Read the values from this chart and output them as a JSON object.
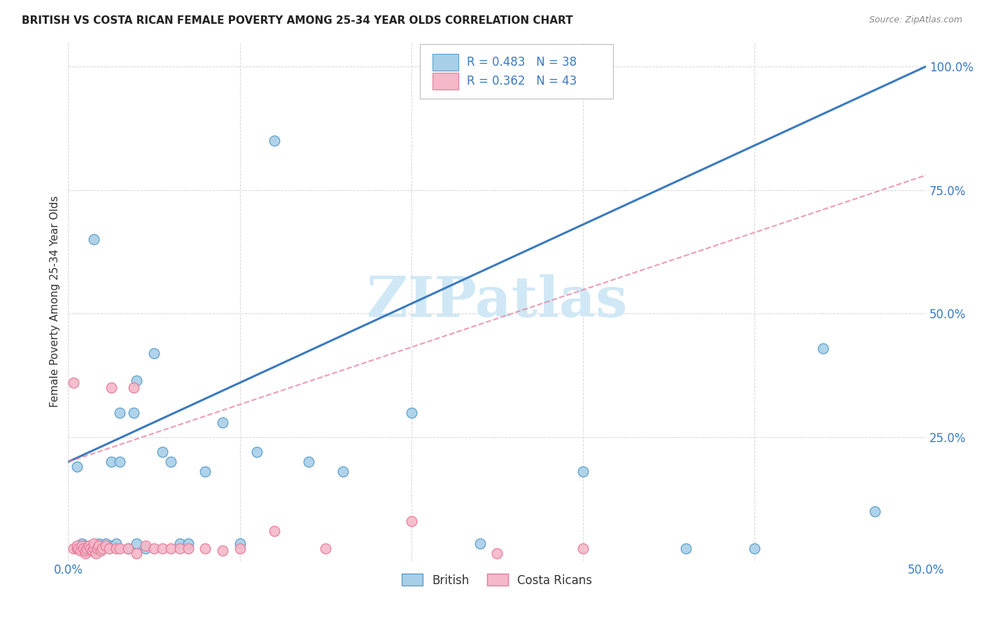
{
  "title": "BRITISH VS COSTA RICAN FEMALE POVERTY AMONG 25-34 YEAR OLDS CORRELATION CHART",
  "source": "Source: ZipAtlas.com",
  "ylabel": "Female Poverty Among 25-34 Year Olds",
  "xlim": [
    0.0,
    0.5
  ],
  "ylim": [
    0.0,
    1.05
  ],
  "xticks": [
    0.0,
    0.1,
    0.2,
    0.3,
    0.4,
    0.5
  ],
  "yticks": [
    0.25,
    0.5,
    0.75,
    1.0
  ],
  "ytick_labels": [
    "25.0%",
    "50.0%",
    "75.0%",
    "100.0%"
  ],
  "xtick_labels": [
    "0.0%",
    "",
    "",
    "",
    "",
    "50.0%"
  ],
  "british_R": "0.483",
  "british_N": "38",
  "costarican_R": "0.362",
  "costarican_N": "43",
  "british_color": "#a8cfe8",
  "british_edge": "#5a9ec9",
  "costarican_color": "#f5b8c8",
  "costarican_edge": "#e87a9a",
  "british_line_color": "#3a7abf",
  "costarican_line_color": "#e87a9a",
  "watermark": "ZIPatlas",
  "watermark_color": "#d0e8f5",
  "legend_text_color": "#3a7abf",
  "british_scatter_x": [
    0.005,
    0.008,
    0.01,
    0.012,
    0.015,
    0.015,
    0.018,
    0.02,
    0.022,
    0.025,
    0.025,
    0.028,
    0.03,
    0.03,
    0.035,
    0.038,
    0.04,
    0.04,
    0.045,
    0.05,
    0.055,
    0.06,
    0.065,
    0.07,
    0.08,
    0.09,
    0.1,
    0.11,
    0.12,
    0.14,
    0.16,
    0.2,
    0.24,
    0.3,
    0.36,
    0.4,
    0.44,
    0.47
  ],
  "british_scatter_y": [
    0.19,
    0.035,
    0.03,
    0.02,
    0.025,
    0.65,
    0.035,
    0.025,
    0.035,
    0.2,
    0.03,
    0.035,
    0.2,
    0.3,
    0.025,
    0.3,
    0.035,
    0.365,
    0.025,
    0.42,
    0.22,
    0.2,
    0.035,
    0.035,
    0.18,
    0.28,
    0.035,
    0.22,
    0.85,
    0.2,
    0.18,
    0.3,
    0.035,
    0.18,
    0.025,
    0.025,
    0.43,
    0.1
  ],
  "costarican_scatter_x": [
    0.003,
    0.003,
    0.005,
    0.005,
    0.006,
    0.007,
    0.008,
    0.009,
    0.01,
    0.01,
    0.011,
    0.012,
    0.013,
    0.014,
    0.015,
    0.015,
    0.016,
    0.017,
    0.018,
    0.019,
    0.02,
    0.022,
    0.024,
    0.025,
    0.028,
    0.03,
    0.035,
    0.038,
    0.04,
    0.045,
    0.05,
    0.055,
    0.06,
    0.065,
    0.07,
    0.08,
    0.09,
    0.1,
    0.12,
    0.15,
    0.2,
    0.25,
    0.3
  ],
  "costarican_scatter_y": [
    0.36,
    0.025,
    0.025,
    0.03,
    0.025,
    0.02,
    0.03,
    0.025,
    0.015,
    0.02,
    0.025,
    0.03,
    0.025,
    0.02,
    0.025,
    0.035,
    0.015,
    0.025,
    0.03,
    0.02,
    0.025,
    0.03,
    0.025,
    0.35,
    0.025,
    0.025,
    0.025,
    0.35,
    0.015,
    0.03,
    0.025,
    0.025,
    0.025,
    0.025,
    0.025,
    0.025,
    0.02,
    0.025,
    0.06,
    0.025,
    0.08,
    0.015,
    0.025
  ],
  "british_line_x0": 0.0,
  "british_line_y0": 0.2,
  "british_line_x1": 0.5,
  "british_line_y1": 1.0,
  "costarican_line_x0": 0.0,
  "costarican_line_y0": 0.2,
  "costarican_line_x1": 0.5,
  "costarican_line_y1": 0.78,
  "background_color": "#ffffff",
  "figsize": [
    14.06,
    8.92
  ],
  "dpi": 100
}
